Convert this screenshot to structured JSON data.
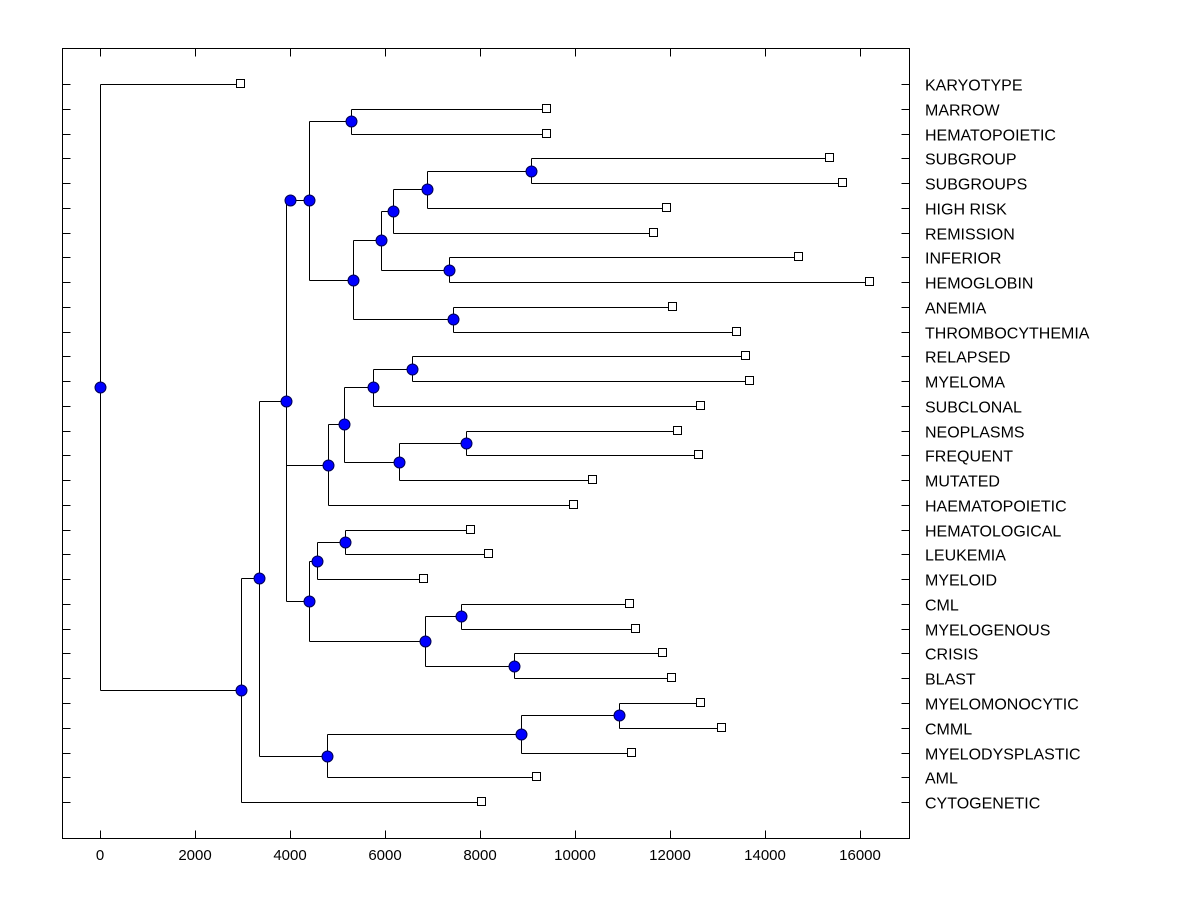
{
  "chart_data": {
    "type": "dendrogram",
    "title": "",
    "xlabel": "",
    "ylabel": "",
    "xlim": [
      -800,
      17000
    ],
    "xticks": [
      0,
      2000,
      4000,
      6000,
      8000,
      10000,
      12000,
      14000,
      16000
    ],
    "xtick_labels": [
      "0",
      "2000",
      "4000",
      "6000",
      "8000",
      "10000",
      "12000",
      "14000",
      "16000"
    ],
    "leaf_order": [
      "KARYOTYPE",
      "MARROW",
      "HEMATOPOIETIC",
      "SUBGROUP",
      "SUBGROUPS",
      "HIGH RISK",
      "REMISSION",
      "INFERIOR",
      "HEMOGLOBIN",
      "ANEMIA",
      "THROMBOCYTHEMIA",
      "RELAPSED",
      "MYELOMA",
      "SUBCLONAL",
      "NEOPLASMS",
      "FREQUENT",
      "MUTATED",
      "HAEMATOPOIETIC",
      "HEMATOLOGICAL",
      "LEUKEMIA",
      "MYELOID",
      "CML",
      "MYELOGENOUS",
      "CRISIS",
      "BLAST",
      "MYELOMONOCYTIC",
      "CMML",
      "MYELODYSPLASTIC",
      "AML",
      "CYTOGENETIC"
    ],
    "leaf_values": {
      "KARYOTYPE": 2970,
      "MARROW": 9400,
      "HEMATOPOIETIC": 9400,
      "SUBGROUP": 15370,
      "SUBGROUPS": 15640,
      "HIGH RISK": 11940,
      "REMISSION": 11660,
      "INFERIOR": 14720,
      "HEMOGLOBIN": 16210,
      "ANEMIA": 12060,
      "THROMBOCYTHEMIA": 13410,
      "RELAPSED": 13600,
      "MYELOMA": 13680,
      "SUBCLONAL": 12650,
      "NEOPLASMS": 12170,
      "FREQUENT": 12610,
      "MUTATED": 10380,
      "HAEMATOPOIETIC": 9980,
      "HEMATOLOGICAL": 7810,
      "LEUKEMIA": 8190,
      "MYELOID": 6820,
      "CML": 11160,
      "MYELOGENOUS": 11280,
      "CRISIS": 11850,
      "BLAST": 12040,
      "MYELOMONOCYTIC": 12650,
      "CMML": 13090,
      "MYELODYSPLASTIC": 11200,
      "AML": 9200,
      "CYTOGENETIC": 8040
    },
    "tree": {
      "value": 0,
      "children": [
        "KARYOTYPE",
        {
          "value": 2970,
          "children": [
            {
              "value": 3350,
              "children": [
                {
                  "value": 3920,
                  "children": [
                    {
                      "value": 4000,
                      "children": [
                        {
                          "value": 4400,
                          "children": [
                            {
                              "value": 5280,
                              "children": [
                                "MARROW",
                                "HEMATOPOIETIC"
                              ]
                            },
                            {
                              "value": 5330,
                              "children": [
                                {
                                  "value": 5920,
                                  "children": [
                                    {
                                      "value": 6170,
                                      "children": [
                                        {
                                          "value": 6880,
                                          "children": [
                                            {
                                              "value": 9070,
                                              "children": [
                                                "SUBGROUP",
                                                "SUBGROUPS"
                                              ]
                                            },
                                            "HIGH RISK"
                                          ]
                                        },
                                        "REMISSION"
                                      ]
                                    },
                                    {
                                      "value": 7350,
                                      "children": [
                                        "INFERIOR",
                                        "HEMOGLOBIN"
                                      ]
                                    }
                                  ]
                                },
                                {
                                  "value": 7430,
                                  "children": [
                                    "ANEMIA",
                                    "THROMBOCYTHEMIA"
                                  ]
                                }
                              ]
                            }
                          ]
                        }
                      ]
                    },
                    {
                      "value": 4800,
                      "children": [
                        {
                          "value": 5140,
                          "children": [
                            {
                              "value": 5750,
                              "children": [
                                {
                                  "value": 6570,
                                  "children": [
                                    "RELAPSED",
                                    "MYELOMA"
                                  ]
                                },
                                "SUBCLONAL"
                              ]
                            },
                            {
                              "value": 6290,
                              "children": [
                                {
                                  "value": 7710,
                                  "children": [
                                    "NEOPLASMS",
                                    "FREQUENT"
                                  ]
                                },
                                "MUTATED"
                              ]
                            }
                          ]
                        },
                        "HAEMATOPOIETIC"
                      ]
                    },
                    {
                      "value": 4400,
                      "children": [
                        {
                          "value": 4570,
                          "children": [
                            {
                              "value": 5160,
                              "children": [
                                "HEMATOLOGICAL",
                                "LEUKEMIA"
                              ]
                            },
                            "MYELOID"
                          ]
                        },
                        {
                          "value": 6840,
                          "children": [
                            {
                              "value": 7600,
                              "children": [
                                "CML",
                                "MYELOGENOUS"
                              ]
                            },
                            {
                              "value": 8720,
                              "children": [
                                "CRISIS",
                                "BLAST"
                              ]
                            }
                          ]
                        }
                      ]
                    }
                  ]
                },
                {
                  "value": 4780,
                  "children": [
                    {
                      "value": 8860,
                      "children": [
                        {
                          "value": 10930,
                          "children": [
                            "MYELOMONOCYTIC",
                            "CMML"
                          ]
                        },
                        "MYELODYSPLASTIC"
                      ]
                    },
                    "AML"
                  ]
                }
              ]
            },
            "CYTOGENETIC"
          ]
        }
      ]
    },
    "colors": {
      "node_fill": "#0000ff",
      "leaf_fill": "#ffffff",
      "line": "#000000"
    }
  }
}
